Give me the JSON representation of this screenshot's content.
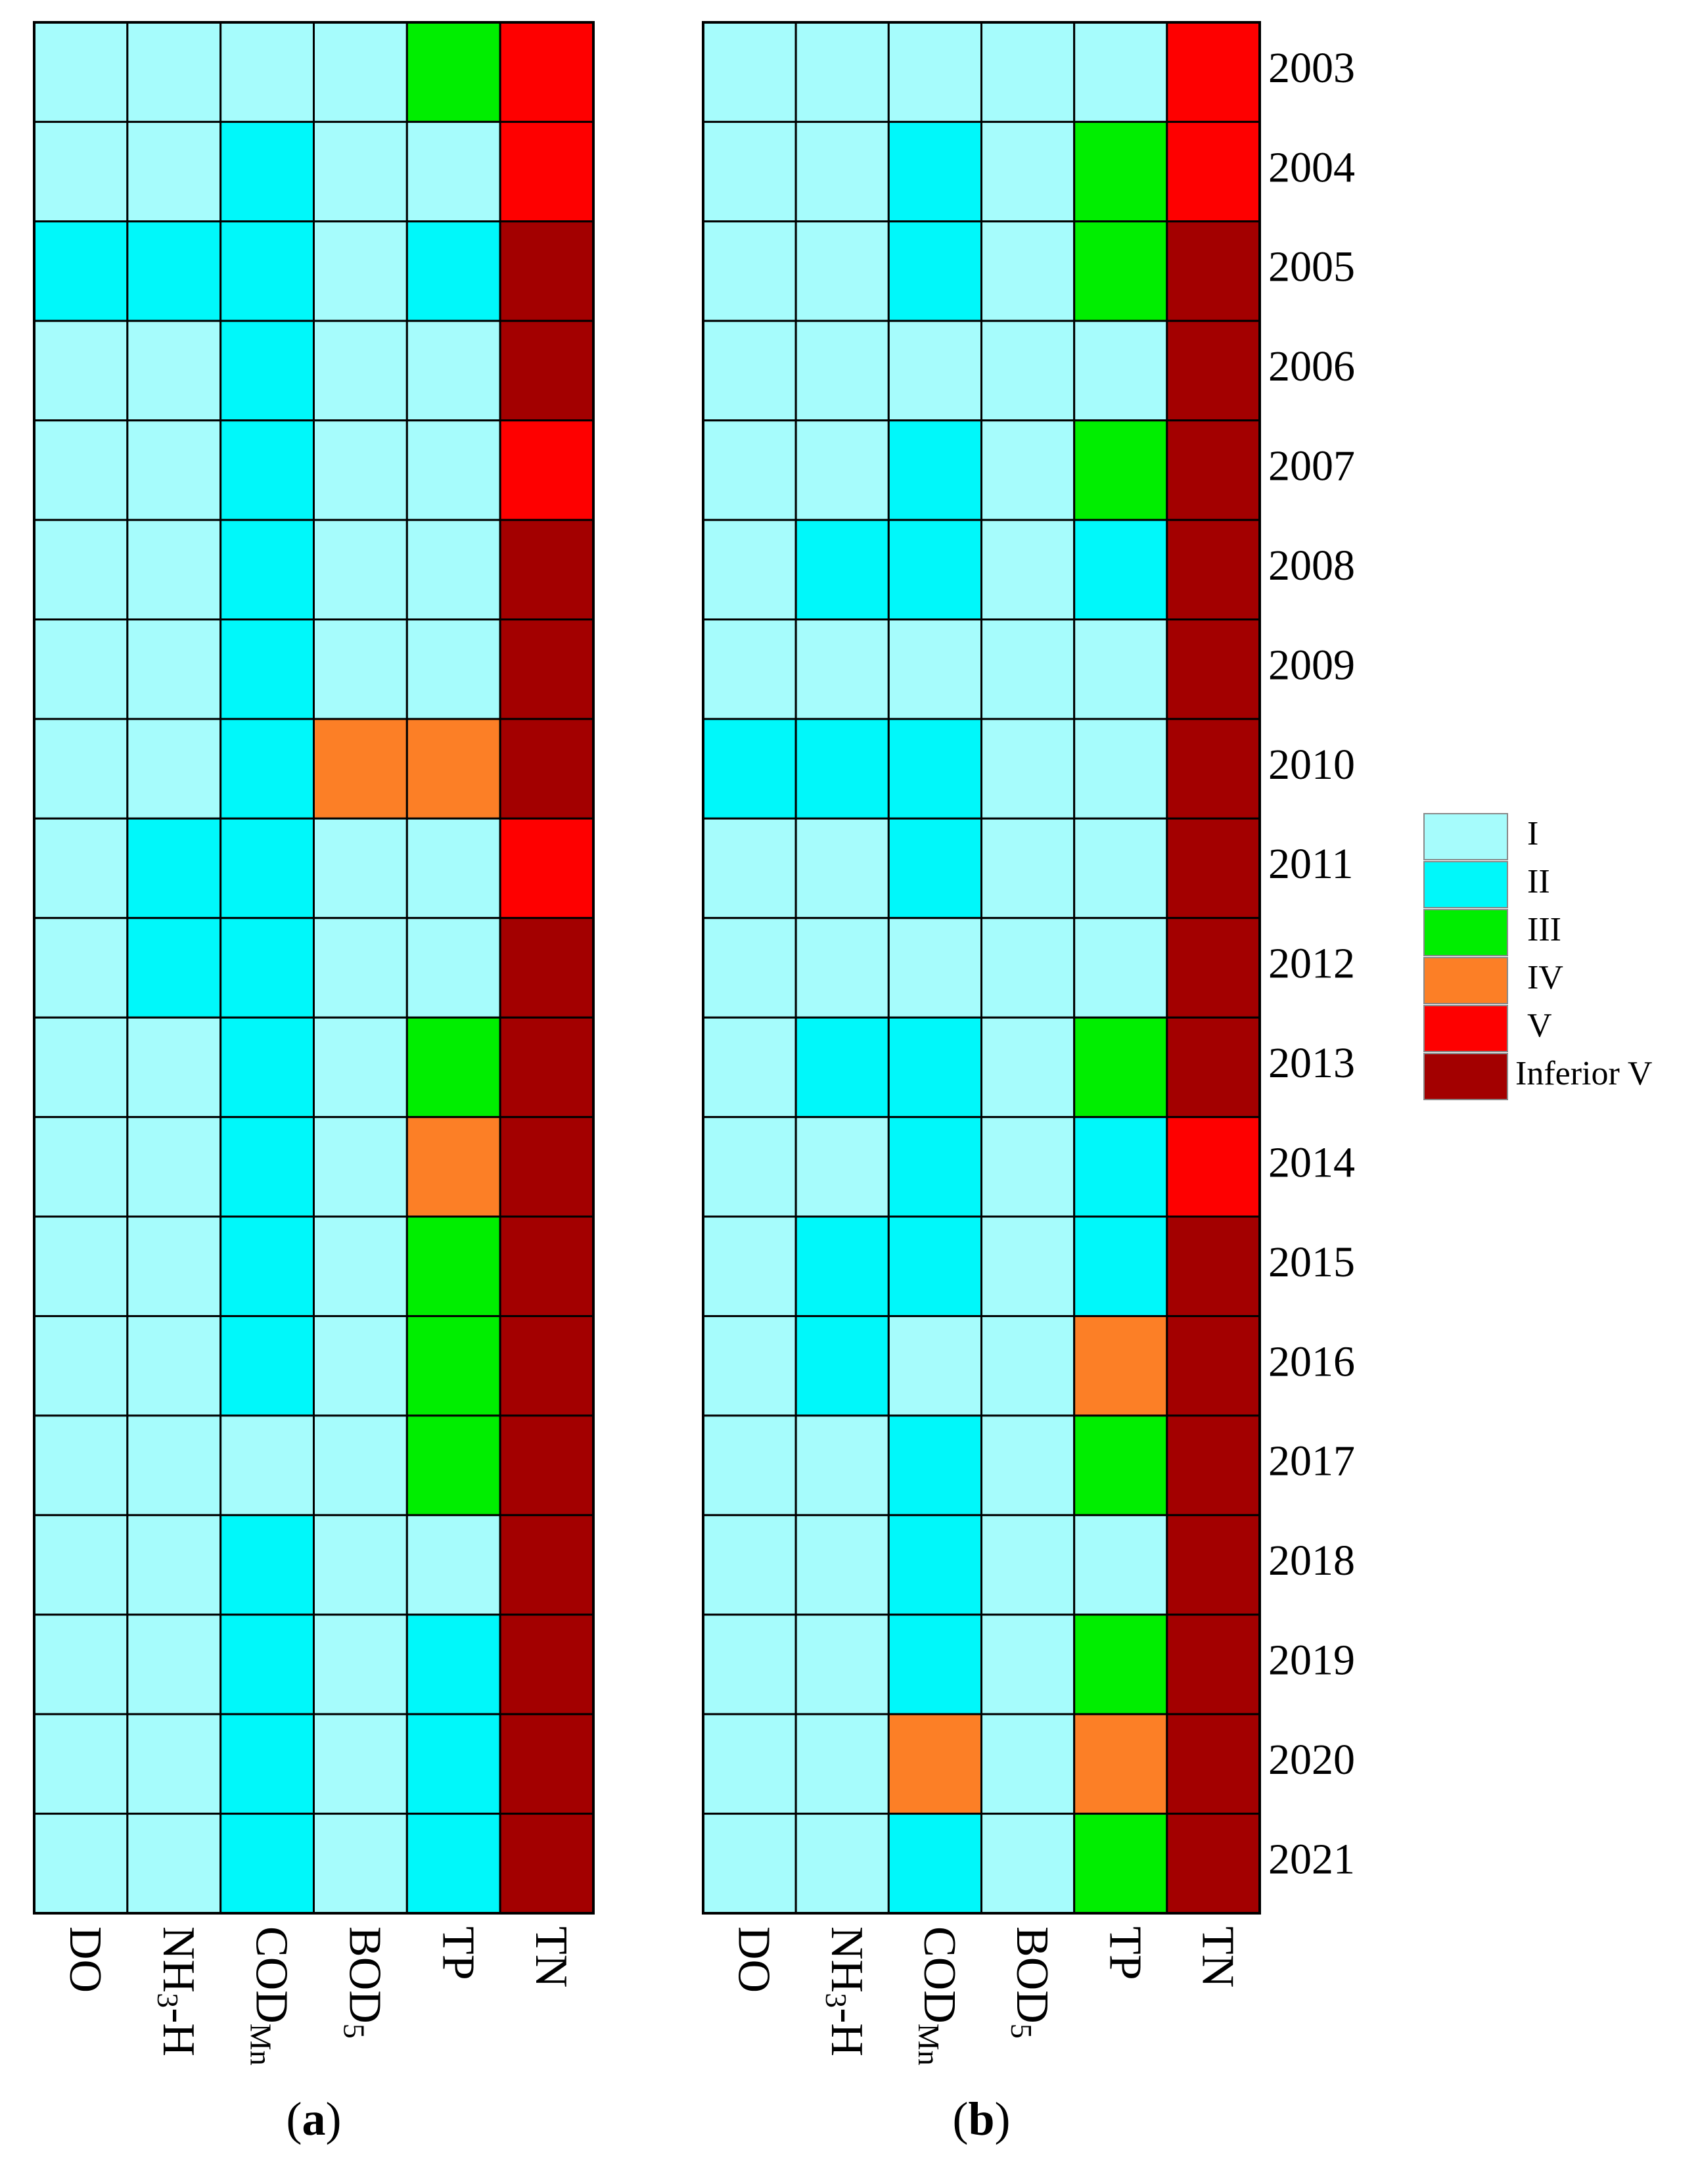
{
  "chart_data": {
    "type": "heatmap",
    "classes": [
      "I",
      "II",
      "III",
      "IV",
      "V",
      "Inferior V"
    ],
    "class_colors": {
      "I": "#a6fcfc",
      "II": "#00f8fa",
      "III": "#00ee00",
      "IV": "#fc7f26",
      "V": "#fe0000",
      "Inferior V": "#a30000"
    },
    "years": [
      "2003",
      "2004",
      "2005",
      "2006",
      "2007",
      "2008",
      "2009",
      "2010",
      "2011",
      "2012",
      "2013",
      "2014",
      "2015",
      "2016",
      "2017",
      "2018",
      "2019",
      "2020",
      "2021"
    ],
    "indicators": [
      {
        "base": "DO",
        "sub": ""
      },
      {
        "base": "NH",
        "sub": "3",
        "tail": "-H"
      },
      {
        "base": "COD",
        "sub": "Mn"
      },
      {
        "base": "BOD",
        "sub": "5"
      },
      {
        "base": "TP",
        "sub": ""
      },
      {
        "base": "TN",
        "sub": ""
      }
    ],
    "panels": [
      {
        "label_open": "(",
        "label_letter": "a",
        "label_close": ")",
        "grid": [
          [
            "I",
            "I",
            "I",
            "I",
            "III",
            "V"
          ],
          [
            "I",
            "I",
            "II",
            "I",
            "I",
            "V"
          ],
          [
            "II",
            "II",
            "II",
            "I",
            "II",
            "Inferior V"
          ],
          [
            "I",
            "I",
            "II",
            "I",
            "I",
            "Inferior V"
          ],
          [
            "I",
            "I",
            "II",
            "I",
            "I",
            "V"
          ],
          [
            "I",
            "I",
            "II",
            "I",
            "I",
            "Inferior V"
          ],
          [
            "I",
            "I",
            "II",
            "I",
            "I",
            "Inferior V"
          ],
          [
            "I",
            "I",
            "II",
            "IV",
            "IV",
            "Inferior V"
          ],
          [
            "I",
            "II",
            "II",
            "I",
            "I",
            "V"
          ],
          [
            "I",
            "II",
            "II",
            "I",
            "I",
            "Inferior V"
          ],
          [
            "I",
            "I",
            "II",
            "I",
            "III",
            "Inferior V"
          ],
          [
            "I",
            "I",
            "II",
            "I",
            "IV",
            "Inferior V"
          ],
          [
            "I",
            "I",
            "II",
            "I",
            "III",
            "Inferior V"
          ],
          [
            "I",
            "I",
            "II",
            "I",
            "III",
            "Inferior V"
          ],
          [
            "I",
            "I",
            "I",
            "I",
            "III",
            "Inferior V"
          ],
          [
            "I",
            "I",
            "II",
            "I",
            "I",
            "Inferior V"
          ],
          [
            "I",
            "I",
            "II",
            "I",
            "II",
            "Inferior V"
          ],
          [
            "I",
            "I",
            "II",
            "I",
            "II",
            "Inferior V"
          ],
          [
            "I",
            "I",
            "II",
            "I",
            "II",
            "Inferior V"
          ]
        ]
      },
      {
        "label_open": "(",
        "label_letter": "b",
        "label_close": ")",
        "grid": [
          [
            "I",
            "I",
            "I",
            "I",
            "I",
            "V"
          ],
          [
            "I",
            "I",
            "II",
            "I",
            "III",
            "V"
          ],
          [
            "I",
            "I",
            "II",
            "I",
            "III",
            "Inferior V"
          ],
          [
            "I",
            "I",
            "I",
            "I",
            "I",
            "Inferior V"
          ],
          [
            "I",
            "I",
            "II",
            "I",
            "III",
            "Inferior V"
          ],
          [
            "I",
            "II",
            "II",
            "I",
            "II",
            "Inferior V"
          ],
          [
            "I",
            "I",
            "I",
            "I",
            "I",
            "Inferior V"
          ],
          [
            "II",
            "II",
            "II",
            "I",
            "I",
            "Inferior V"
          ],
          [
            "I",
            "I",
            "II",
            "I",
            "I",
            "Inferior V"
          ],
          [
            "I",
            "I",
            "I",
            "I",
            "I",
            "Inferior V"
          ],
          [
            "I",
            "II",
            "II",
            "I",
            "III",
            "Inferior V"
          ],
          [
            "I",
            "I",
            "II",
            "I",
            "II",
            "V"
          ],
          [
            "I",
            "II",
            "II",
            "I",
            "II",
            "Inferior V"
          ],
          [
            "I",
            "II",
            "I",
            "I",
            "IV",
            "Inferior V"
          ],
          [
            "I",
            "I",
            "II",
            "I",
            "III",
            "Inferior V"
          ],
          [
            "I",
            "I",
            "II",
            "I",
            "I",
            "Inferior V"
          ],
          [
            "I",
            "I",
            "II",
            "I",
            "III",
            "Inferior V"
          ],
          [
            "I",
            "I",
            "IV",
            "I",
            "IV",
            "Inferior V"
          ],
          [
            "I",
            "I",
            "II",
            "I",
            "III",
            "Inferior V"
          ]
        ]
      }
    ],
    "legend": {
      "placement": "right",
      "entries": [
        "I",
        "II",
        "III",
        "IV",
        "V",
        "Inferior V"
      ]
    }
  }
}
